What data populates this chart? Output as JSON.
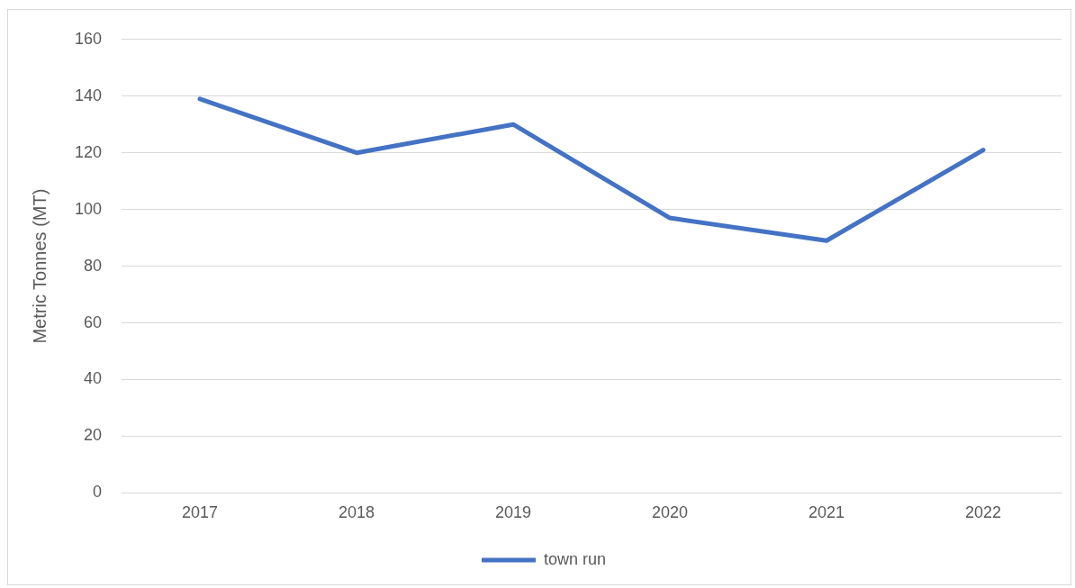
{
  "chart_data": {
    "type": "line",
    "ylabel": "Metric Tonnes (MT)",
    "categories": [
      "2017",
      "2018",
      "2019",
      "2020",
      "2021",
      "2022"
    ],
    "series": [
      {
        "name": "town run",
        "color": "#4472c4",
        "values": [
          139,
          120,
          130,
          97,
          89,
          121
        ]
      }
    ],
    "ylim": [
      0,
      160
    ],
    "yticks": [
      0,
      20,
      40,
      60,
      80,
      100,
      120,
      140,
      160
    ],
    "grid": "y",
    "legend": "bottom",
    "marker": "none",
    "line_style": "solid"
  }
}
